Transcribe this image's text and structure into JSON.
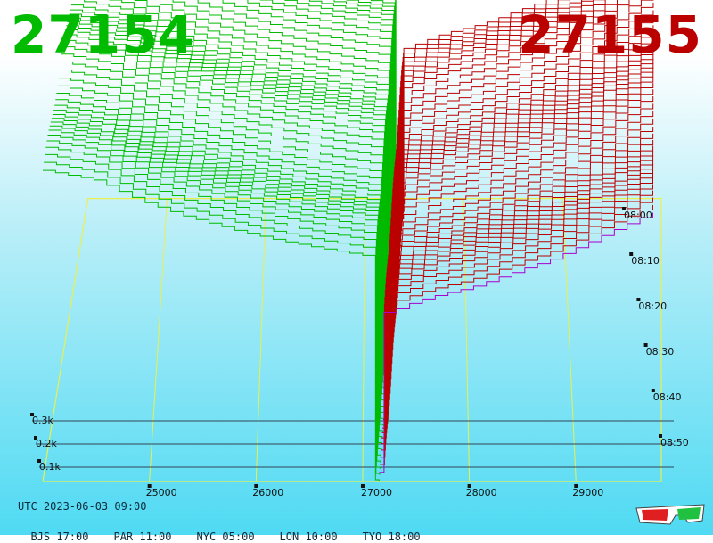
{
  "header": {
    "bid": "27154",
    "ask": "27155"
  },
  "footer": {
    "utc": "UTC 2023-06-03 09:00",
    "zones": [
      "BJS 17:00",
      "PAR 11:00",
      "NYC 05:00",
      "LON 10:00",
      "TYO 18:00"
    ]
  },
  "colors": {
    "bid": "#00bb00",
    "ask": "#bb0000",
    "grid": "#e8f050",
    "mid_line": "#aa00cc",
    "depth_rule": "#334455"
  },
  "icons": {
    "glasses": "3d-glasses-icon"
  },
  "chart_data": {
    "type": "area",
    "subtype": "3d-order-book-depth",
    "price_axis": {
      "ticks": [
        "25000",
        "26000",
        "27000",
        "28000",
        "29000"
      ],
      "range": [
        24000,
        29800
      ]
    },
    "depth_axis": {
      "ticks": [
        "0.1k",
        "0.2k",
        "0.3k"
      ],
      "range": [
        0,
        300
      ]
    },
    "time_axis": {
      "ticks": [
        "08:00",
        "08:10",
        "08:20",
        "08:30",
        "08:40",
        "08:50"
      ]
    },
    "series": [
      {
        "name": "27154",
        "side": "bid",
        "prices": [
          24000,
          24500,
          24900,
          25300,
          25800,
          26200,
          26600,
          27000,
          27154
        ],
        "depth": [
          300,
          290,
          270,
          255,
          240,
          230,
          222,
          215,
          0
        ]
      },
      {
        "name": "27155",
        "side": "ask",
        "prices": [
          27155,
          27200,
          27600,
          28000,
          28400,
          28800,
          29200,
          29700
        ],
        "depth": [
          0,
          160,
          175,
          185,
          200,
          215,
          235,
          260
        ]
      }
    ]
  }
}
